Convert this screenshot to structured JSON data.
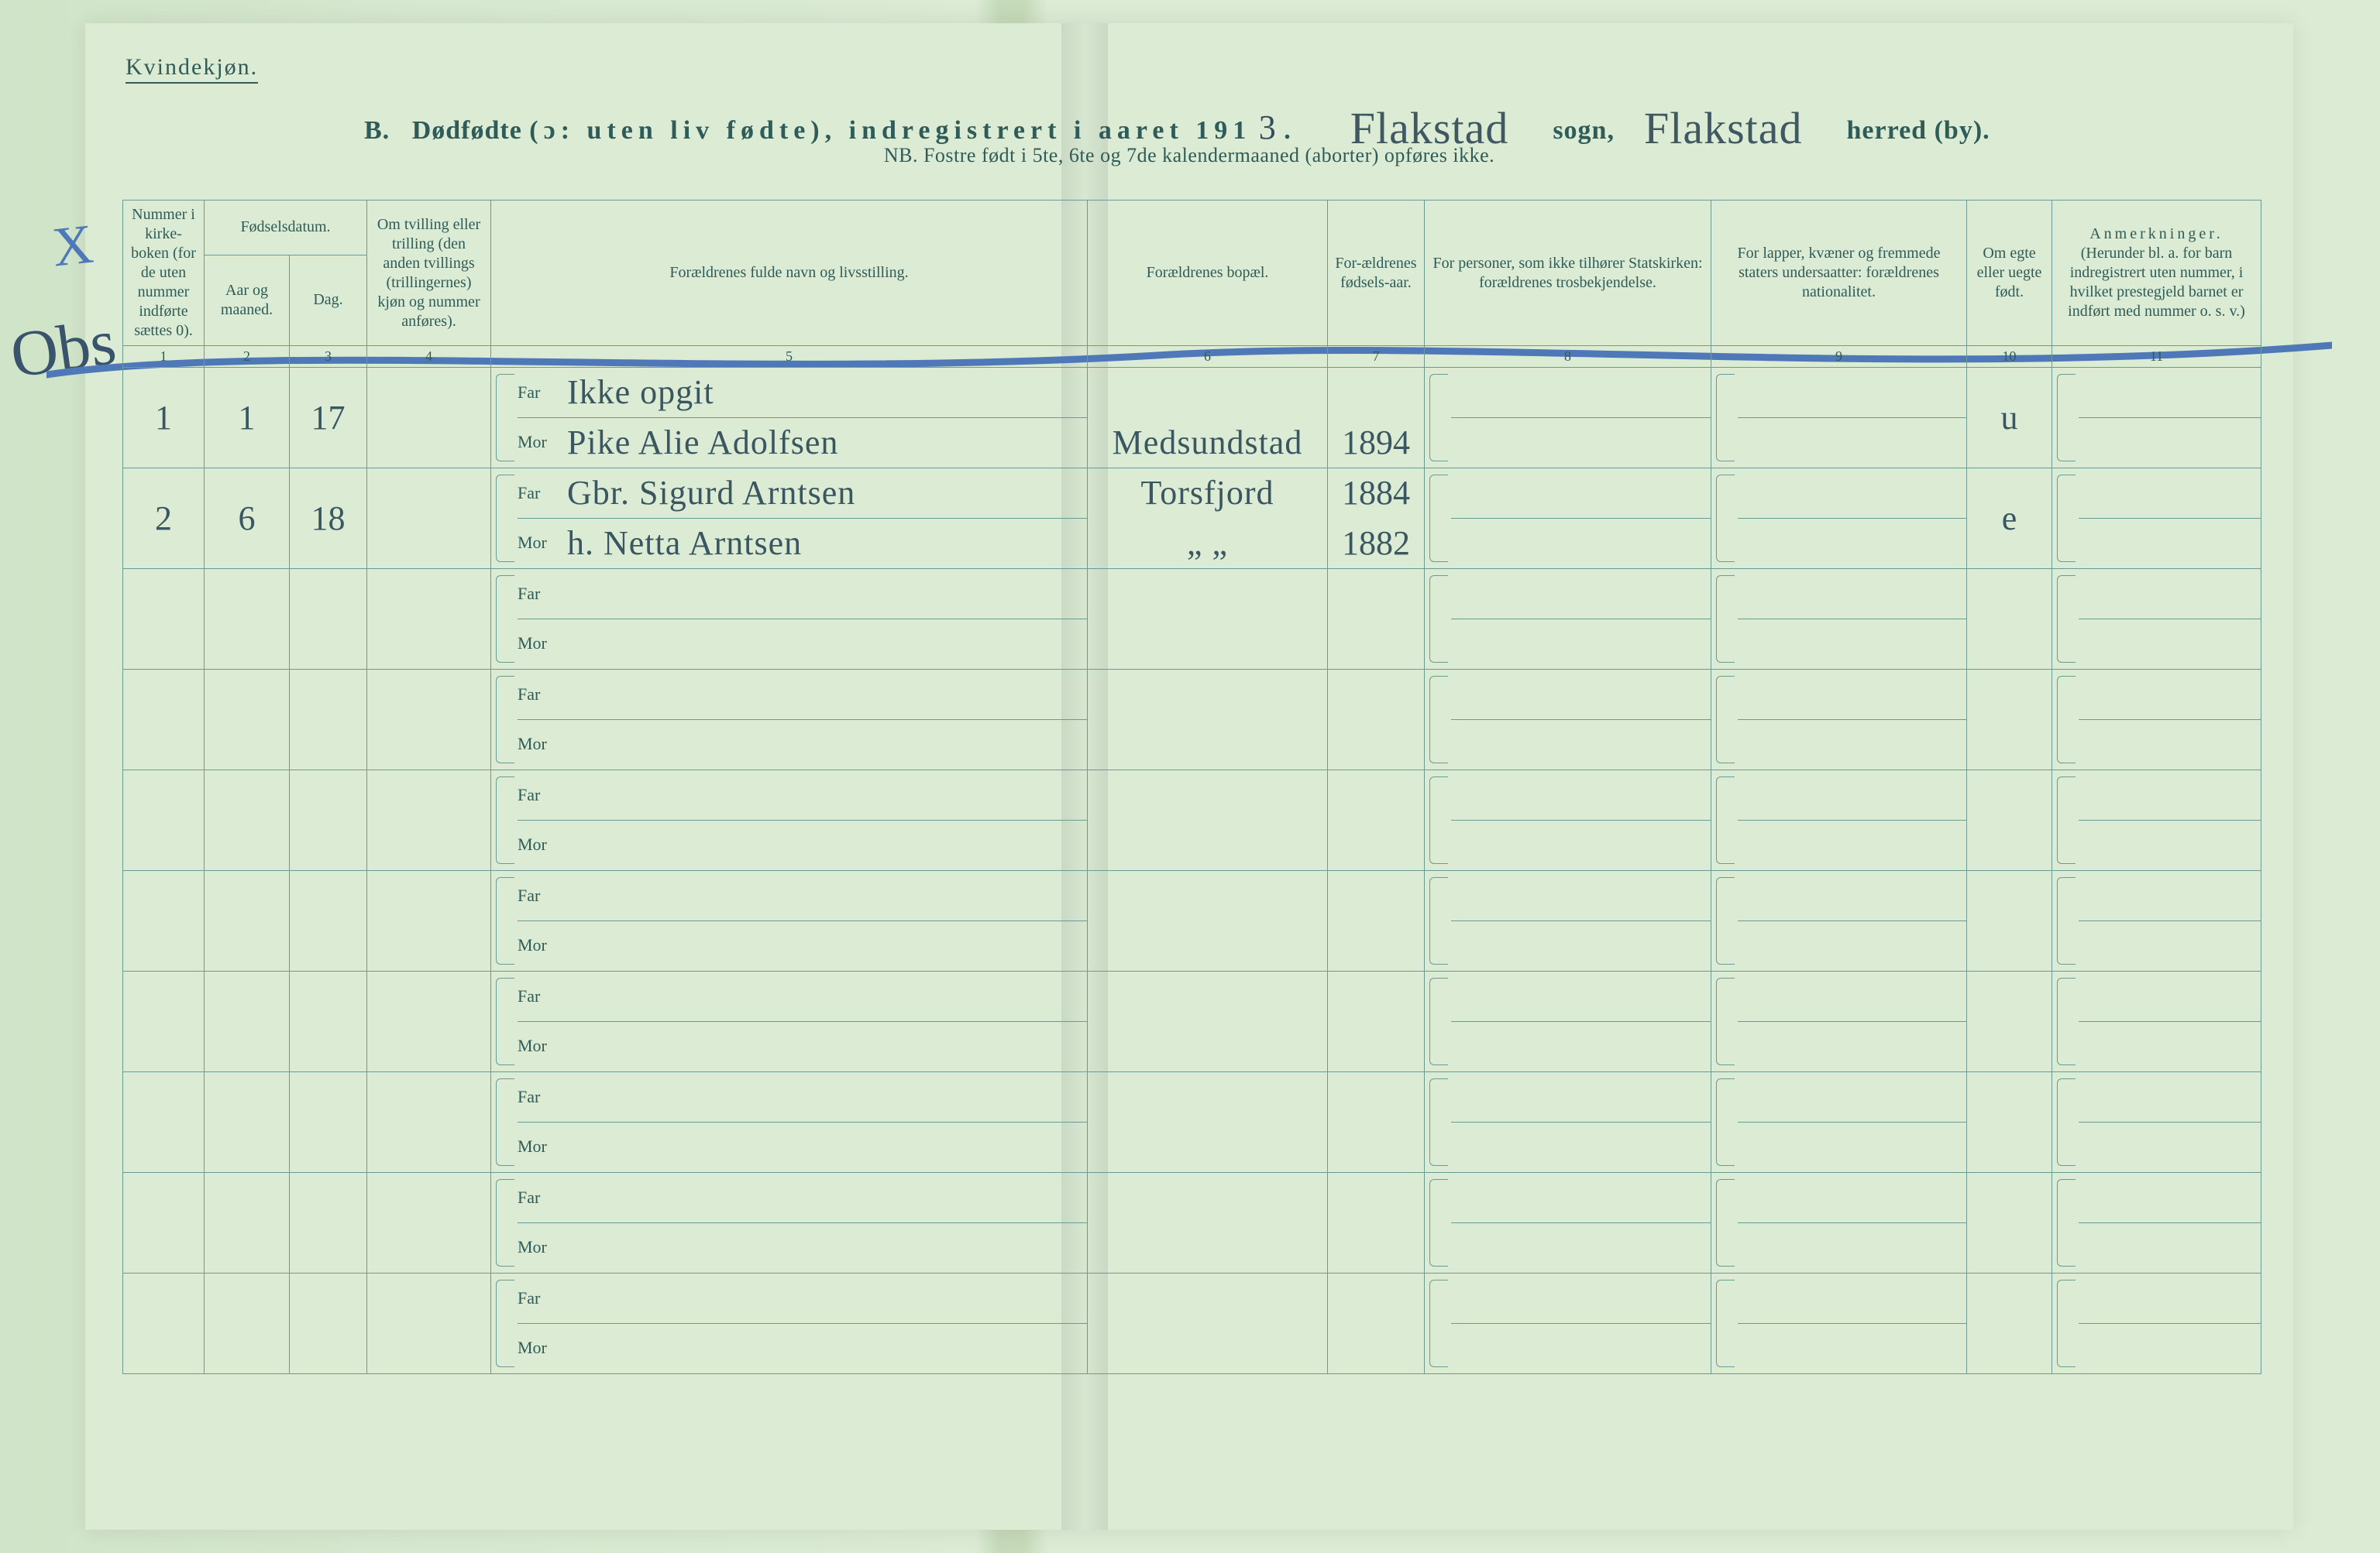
{
  "page": {
    "bg_color_paper": "#dbebd4",
    "line_color": "#6c9b93",
    "text_color": "#2f5b58",
    "handwriting_color": "#3a5660",
    "blue_pencil_color": "#4f78b8"
  },
  "header": {
    "gender": "Kvindekjøn.",
    "prefix": "B.",
    "title_strong": "Dødfødte",
    "title_paren": "(ɔ: uten liv fødte), indregistrert i aaret 191",
    "year_suffix": "3",
    "dot": ".",
    "sogn_value": "Flakstad",
    "sogn_label": "sogn,",
    "herred_value": "Flakstad",
    "herred_label": "herred (by).",
    "nb": "NB.  Fostre født i 5te, 6te og 7de kalendermaaned (aborter) opføres ikke."
  },
  "columns": {
    "c1": "Nummer i kirke-boken (for de uten nummer indførte sættes 0).",
    "c2_group": "Fødselsdatum.",
    "c2": "Aar og maaned.",
    "c3": "Dag.",
    "c4": "Om tvilling eller trilling (den anden tvillings (trillingernes) kjøn og nummer anføres).",
    "c5": "Forældrenes fulde navn og livsstilling.",
    "c6": "Forældrenes bopæl.",
    "c7": "For-ældrenes fødsels-aar.",
    "c8": "For personer, som ikke tilhører Statskirken: forældrenes trosbekjendelse.",
    "c9": "For lapper, kvæner og fremmede staters undersaatter: forældrenes nationalitet.",
    "c10": "Om egte eller uegte født.",
    "c11_title": "Anmerkninger.",
    "c11_sub": "(Herunder bl. a. for barn indregistrert uten nummer, i hvilket prestegjeld barnet er indført med nummer o. s. v.)",
    "nums": [
      "1",
      "2",
      "3",
      "4",
      "5",
      "6",
      "7",
      "8",
      "9",
      "10",
      "11"
    ]
  },
  "far_label": "Far",
  "mor_label": "Mor",
  "rows": [
    {
      "num": "1",
      "aar_mnd": "1",
      "dag": "17",
      "tvill": "",
      "far": "Ikke opgit",
      "mor": "Pike Alie Adolfsen",
      "far_bopel": "",
      "mor_bopel": "Medsundstad",
      "far_aar": "",
      "mor_aar": "1894",
      "egte": "u"
    },
    {
      "num": "2",
      "aar_mnd": "6",
      "dag": "18",
      "tvill": "",
      "far": "Gbr. Sigurd Arntsen",
      "mor": "h. Netta Arntsen",
      "far_bopel": "Torsfjord",
      "mor_bopel": "„   „",
      "far_aar": "1884",
      "mor_aar": "1882",
      "egte": "e"
    },
    {
      "num": "",
      "aar_mnd": "",
      "dag": "",
      "tvill": "",
      "far": "",
      "mor": "",
      "far_bopel": "",
      "mor_bopel": "",
      "far_aar": "",
      "mor_aar": "",
      "egte": ""
    },
    {
      "num": "",
      "aar_mnd": "",
      "dag": "",
      "tvill": "",
      "far": "",
      "mor": "",
      "far_bopel": "",
      "mor_bopel": "",
      "far_aar": "",
      "mor_aar": "",
      "egte": ""
    },
    {
      "num": "",
      "aar_mnd": "",
      "dag": "",
      "tvill": "",
      "far": "",
      "mor": "",
      "far_bopel": "",
      "mor_bopel": "",
      "far_aar": "",
      "mor_aar": "",
      "egte": ""
    },
    {
      "num": "",
      "aar_mnd": "",
      "dag": "",
      "tvill": "",
      "far": "",
      "mor": "",
      "far_bopel": "",
      "mor_bopel": "",
      "far_aar": "",
      "mor_aar": "",
      "egte": ""
    },
    {
      "num": "",
      "aar_mnd": "",
      "dag": "",
      "tvill": "",
      "far": "",
      "mor": "",
      "far_bopel": "",
      "mor_bopel": "",
      "far_aar": "",
      "mor_aar": "",
      "egte": ""
    },
    {
      "num": "",
      "aar_mnd": "",
      "dag": "",
      "tvill": "",
      "far": "",
      "mor": "",
      "far_bopel": "",
      "mor_bopel": "",
      "far_aar": "",
      "mor_aar": "",
      "egte": ""
    },
    {
      "num": "",
      "aar_mnd": "",
      "dag": "",
      "tvill": "",
      "far": "",
      "mor": "",
      "far_bopel": "",
      "mor_bopel": "",
      "far_aar": "",
      "mor_aar": "",
      "egte": ""
    },
    {
      "num": "",
      "aar_mnd": "",
      "dag": "",
      "tvill": "",
      "far": "",
      "mor": "",
      "far_bopel": "",
      "mor_bopel": "",
      "far_aar": "",
      "mor_aar": "",
      "egte": ""
    }
  ],
  "annotations": {
    "margin_x": "X",
    "margin_obs": "Obs"
  }
}
